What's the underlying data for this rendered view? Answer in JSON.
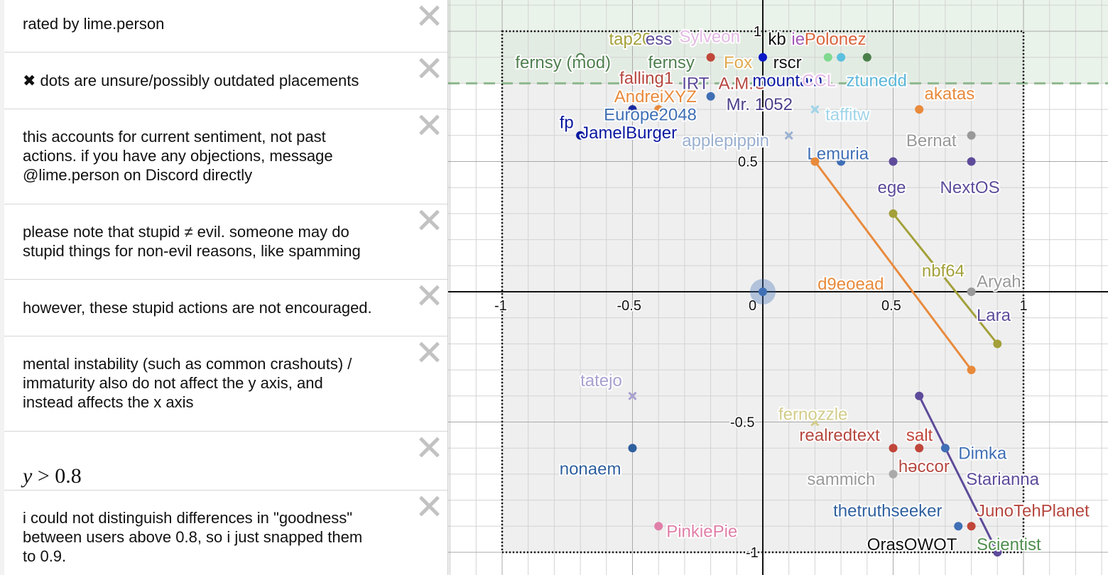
{
  "sidebar": {
    "notes": [
      {
        "text": "rated by lime.person",
        "close_icon": "close-icon"
      },
      {
        "text": "✖ dots are unsure/possibly outdated placements",
        "close_icon": "close-icon"
      },
      {
        "text": "this accounts for current sentiment, not past\nactions. if you have any objections, message\n@lime.person on Discord directly",
        "close_icon": "close-icon"
      },
      {
        "text": "please note that stupid ≠ evil. someone may do\nstupid things for non-evil reasons, like spamming",
        "close_icon": "close-icon"
      },
      {
        "text": "however, these stupid actions are not encouraged.",
        "close_icon": "close-icon"
      },
      {
        "text": "mental instability (such as common crashouts) /\nimmaturity also do not affect the y axis, and\ninstead affects the x axis",
        "close_icon": "close-icon"
      },
      {
        "expr_var": "y",
        "expr_op": " > ",
        "expr_val": "0.8",
        "close_icon": "close-icon"
      },
      {
        "text": "i could not distinguish differences in \"goodness\"\nbetween users above 0.8, so i just snapped them\nto 0.9.",
        "close_icon": "close-icon"
      }
    ]
  },
  "chart_data": {
    "type": "scatter",
    "title": "",
    "xlabel": "",
    "ylabel": "",
    "xlim": [
      -1.2,
      1.3
    ],
    "ylim": [
      -1.09,
      1.12
    ],
    "grid": true,
    "x_ticks": [
      "-1",
      "-0.5",
      "0",
      "0.5",
      "1"
    ],
    "y_ticks": [
      "1",
      "0.5",
      "-0.5",
      "-1"
    ],
    "regions": [
      {
        "name": "y > 0.8",
        "fill": "#dfeee0",
        "boundary": "dashed",
        "color": "#86b386"
      },
      {
        "name": "box [-1,1]x[-1,1]",
        "boundary": "dotted",
        "fill": "#eeeeee",
        "color": "#111111"
      }
    ],
    "points": [
      {
        "label": "fernsy (mod)",
        "x": -0.7,
        "y": 0.9,
        "color": "#4f7f4f",
        "marker": "open",
        "lx": -0.95,
        "ly": 0.88
      },
      {
        "label": "tap20",
        "x": -0.4,
        "y": 0.96,
        "color": "#a3a03a",
        "marker": "none",
        "lx": -0.59,
        "ly": 0.97
      },
      {
        "label": "ess",
        "x": -0.3,
        "y": 0.96,
        "color": "#5d4b9a",
        "marker": "none",
        "lx": -0.45,
        "ly": 0.97
      },
      {
        "label": "Sylveon",
        "x": -0.15,
        "y": 0.97,
        "color": "#e3b8e3",
        "marker": "none",
        "lx": -0.32,
        "ly": 0.98
      },
      {
        "label": "fernsy",
        "x": -0.2,
        "y": 0.9,
        "color": "#c0463a",
        "marker": "dot",
        "lx": -0.44,
        "ly": 0.88,
        "lcolor": "#4f7f4f"
      },
      {
        "label": "Fox",
        "x": -0.15,
        "y": 0.9,
        "color": "#e0a94f",
        "marker": "none",
        "lx": -0.15,
        "ly": 0.88
      },
      {
        "label": "kb",
        "x": 0.02,
        "y": 0.97,
        "color": "#111111",
        "marker": "none",
        "lx": 0.02,
        "ly": 0.97
      },
      {
        "label": "ie",
        "x": 0.12,
        "y": 0.97,
        "color": "#a357b8",
        "marker": "none",
        "lx": 0.11,
        "ly": 0.97
      },
      {
        "label": "Polonez",
        "x": 0.2,
        "y": 0.97,
        "color": "#d9633b",
        "marker": "none",
        "lx": 0.16,
        "ly": 0.97
      },
      {
        "label": "rscr",
        "x": 0.0,
        "y": 0.9,
        "color": "#0a18c7",
        "marker": "dot",
        "lx": 0.04,
        "ly": 0.88,
        "lcolor": "#111111"
      },
      {
        "label": "",
        "x": 0.25,
        "y": 0.9,
        "color": "#7fd98f",
        "marker": "dot"
      },
      {
        "label": "",
        "x": 0.3,
        "y": 0.9,
        "color": "#5bc0de",
        "marker": "dot"
      },
      {
        "label": "",
        "x": 0.4,
        "y": 0.9,
        "color": "#4a7f4a",
        "marker": "dot"
      },
      {
        "label": "falling1",
        "x": -0.3,
        "y": 0.84,
        "color": "#b5473f",
        "marker": "none",
        "lx": -0.55,
        "ly": 0.82
      },
      {
        "label": "IRT",
        "x": -0.25,
        "y": 0.82,
        "color": "#5d4b9a",
        "marker": "none",
        "lx": -0.31,
        "ly": 0.8
      },
      {
        "label": "A.M.O",
        "x": -0.1,
        "y": 0.81,
        "color": "#b5473f",
        "marker": "none",
        "lx": -0.17,
        "ly": 0.8
      },
      {
        "label": "mountain",
        "x": 0.05,
        "y": 0.82,
        "color": "#0a18a0",
        "marker": "none",
        "lx": -0.04,
        "ly": 0.81
      },
      {
        "label": "CCL",
        "x": 0.22,
        "y": 0.82,
        "color": "#e3b8e3",
        "marker": "none",
        "lx": 0.15,
        "ly": 0.81
      },
      {
        "label": "ztunedd",
        "x": 0.39,
        "y": 0.82,
        "color": "#5bb6d9",
        "marker": "none",
        "lx": 0.32,
        "ly": 0.81
      },
      {
        "label": "AndreiXYZ",
        "x": -0.4,
        "y": 0.7,
        "color": "#e88a3c",
        "marker": "dot",
        "lx": -0.57,
        "ly": 0.75
      },
      {
        "label": "Mr. 1052",
        "x": -0.2,
        "y": 0.75,
        "color": "#3f6fb5",
        "marker": "dot",
        "lx": -0.14,
        "ly": 0.72,
        "lcolor": "#4b3f8a"
      },
      {
        "label": "Europe2048",
        "x": -0.5,
        "y": 0.7,
        "color": "#1a2aa0",
        "marker": "dot",
        "lx": -0.61,
        "ly": 0.68,
        "lcolor": "#3f6fb5"
      },
      {
        "label": "fp",
        "x": -0.7,
        "y": 0.6,
        "color": "#0a18a0",
        "marker": "dot",
        "lx": -0.78,
        "ly": 0.65
      },
      {
        "label": "JamelBurger",
        "x": -0.7,
        "y": 0.6,
        "color": "#0a18a0",
        "marker": "none",
        "lx": -0.7,
        "ly": 0.61
      },
      {
        "label": "applepippin",
        "x": 0.1,
        "y": 0.6,
        "color": "#9ab0d0",
        "marker": "x",
        "lx": -0.31,
        "ly": 0.58
      },
      {
        "label": "taffitw",
        "x": 0.2,
        "y": 0.7,
        "color": "#9fd4e8",
        "marker": "x",
        "lx": 0.24,
        "ly": 0.68
      },
      {
        "label": "akatas",
        "x": 0.6,
        "y": 0.7,
        "color": "#e88a3c",
        "marker": "dot",
        "lx": 0.62,
        "ly": 0.76
      },
      {
        "label": "Bernat",
        "x": 0.8,
        "y": 0.6,
        "color": "#999999",
        "marker": "dot",
        "lx": 0.55,
        "ly": 0.58
      },
      {
        "label": "Lemuria",
        "x": 0.3,
        "y": 0.5,
        "color": "#3f6fb5",
        "marker": "dot",
        "lx": 0.17,
        "ly": 0.53
      },
      {
        "label": "",
        "x": 0.2,
        "y": 0.5,
        "color": "#e88a3c",
        "marker": "dot"
      },
      {
        "label": "ege",
        "x": 0.5,
        "y": 0.5,
        "color": "#5d4b9a",
        "marker": "dot",
        "lx": 0.44,
        "ly": 0.4
      },
      {
        "label": "NextOS",
        "x": 0.8,
        "y": 0.5,
        "color": "#5d4b9a",
        "marker": "dot",
        "lx": 0.68,
        "ly": 0.4
      },
      {
        "label": "nbf64",
        "x": 0.5,
        "y": 0.3,
        "color": "#a3a03a",
        "marker": "dot",
        "lx": 0.61,
        "ly": 0.08
      },
      {
        "label": "",
        "x": 0.9,
        "y": -0.2,
        "color": "#a3a03a",
        "marker": "dot"
      },
      {
        "label": "d9eoead",
        "x": 0.8,
        "y": -0.3,
        "color": "#e88a3c",
        "marker": "dot",
        "lx": 0.21,
        "ly": 0.03
      },
      {
        "label": "Aryah",
        "x": 0.8,
        "y": 0.0,
        "color": "#999999",
        "marker": "dot",
        "lx": 0.82,
        "ly": 0.04
      },
      {
        "label": "Lara",
        "x": 0.84,
        "y": -0.05,
        "color": "#5d4b9a",
        "marker": "none",
        "lx": 0.82,
        "ly": -0.09
      },
      {
        "label": "",
        "x": 0.0,
        "y": 0.0,
        "color": "#3f6fb5",
        "marker": "origin"
      },
      {
        "label": "tatejo",
        "x": -0.5,
        "y": -0.4,
        "color": "#a8a0d0",
        "marker": "x",
        "lx": -0.7,
        "ly": -0.34
      },
      {
        "label": "nonaem",
        "x": -0.5,
        "y": -0.6,
        "color": "#2e5f9e",
        "marker": "dot",
        "lx": -0.78,
        "ly": -0.68
      },
      {
        "label": "PinkiePie",
        "x": -0.4,
        "y": -0.9,
        "color": "#e07fa8",
        "marker": "dot",
        "lx": -0.37,
        "ly": -0.92
      },
      {
        "label": "fernozzle",
        "x": 0.2,
        "y": -0.5,
        "color": "#d2cc8a",
        "marker": "x",
        "lx": 0.06,
        "ly": -0.47
      },
      {
        "label": "realredtext",
        "x": 0.5,
        "y": -0.6,
        "color": "#c0463a",
        "marker": "dot",
        "lx": 0.14,
        "ly": -0.55,
        "lcolor": "#b5473f"
      },
      {
        "label": "salt",
        "x": 0.6,
        "y": -0.6,
        "color": "#c0463a",
        "marker": "dot",
        "lx": 0.55,
        "ly": -0.55
      },
      {
        "label": "Dimka",
        "x": 0.7,
        "y": -0.6,
        "color": "#3f6fb5",
        "marker": "dot",
        "lx": 0.75,
        "ly": -0.62
      },
      {
        "label": "sammich",
        "x": 0.5,
        "y": -0.7,
        "color": "#aaaaaa",
        "marker": "dot",
        "lx": 0.17,
        "ly": -0.72,
        "lcolor": "#999999"
      },
      {
        "label": "həccor",
        "x": 0.52,
        "y": -0.66,
        "color": "#b5473f",
        "marker": "none",
        "lx": 0.52,
        "ly": -0.67
      },
      {
        "label": "Starianna",
        "x": 0.6,
        "y": -0.4,
        "color": "#5d4b9a",
        "marker": "dot",
        "lx": 0.78,
        "ly": -0.72
      },
      {
        "label": "",
        "x": 0.9,
        "y": -1.0,
        "color": "#5d4b9a",
        "marker": "dot"
      },
      {
        "label": "thetruthseeker",
        "x": 0.75,
        "y": -0.9,
        "color": "#3f6fb5",
        "marker": "dot",
        "lx": 0.27,
        "ly": -0.84,
        "lcolor": "#2e5f9e"
      },
      {
        "label": "JunoTehPlanet",
        "x": 0.8,
        "y": -0.9,
        "color": "#c0463a",
        "marker": "dot",
        "lx": 0.82,
        "ly": -0.84,
        "lcolor": "#b5473f"
      },
      {
        "label": "OrasOWOT",
        "x": 0.6,
        "y": -0.97,
        "color": "#111111",
        "marker": "none",
        "lx": 0.4,
        "ly": -0.97
      },
      {
        "label": "Scientist",
        "x": 0.9,
        "y": -0.97,
        "color": "#4f8f4f",
        "marker": "none",
        "lx": 0.82,
        "ly": -0.97
      }
    ],
    "segments": [
      {
        "name": "nbf64",
        "from": [
          0.5,
          0.3
        ],
        "to": [
          0.9,
          -0.2
        ],
        "color": "#a3a03a"
      },
      {
        "name": "d9eoead",
        "from": [
          0.2,
          0.5
        ],
        "to": [
          0.8,
          -0.3
        ],
        "color": "#e88a3c"
      },
      {
        "name": "Starianna",
        "from": [
          0.6,
          -0.4
        ],
        "to": [
          0.9,
          -1.0
        ],
        "color": "#5d4b9a"
      }
    ]
  }
}
